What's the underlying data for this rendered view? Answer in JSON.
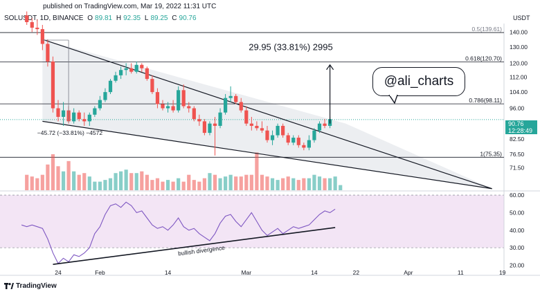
{
  "header": {
    "published": "published on TradingView.com, Mar 19, 2022 11:31 UTC",
    "symbol": "SOLUSDT, 1D, BINANCE",
    "open_label": "O",
    "open": "89.81",
    "high_label": "H",
    "high": "92.35",
    "low_label": "L",
    "low": "89.25",
    "close_label": "C",
    "close": "90.76",
    "currency": "USDT"
  },
  "price_tag": {
    "price": "90.76",
    "time": "12:28:49",
    "color": "#26a69a"
  },
  "bubble": {
    "text": "@ali_charts"
  },
  "footer": {
    "logo": "TradingView",
    "logo_icon": "tradingview-logo-icon"
  },
  "colors": {
    "up": "#26a69a",
    "down": "#ef5350",
    "rsi_band": "#f3e5f5",
    "rsi_line": "#7e57c2",
    "wedge_fill": "#e9ebef"
  },
  "chart_data": [
    {
      "type": "candlestick",
      "title": "",
      "ylabel": "",
      "x_ticks": [
        {
          "label": "24",
          "day": 0
        },
        {
          "label": "Feb",
          "day": 8
        },
        {
          "label": "14",
          "day": 21
        },
        {
          "label": "Mar",
          "day": 36
        },
        {
          "label": "14",
          "day": 49
        },
        {
          "label": "22",
          "day": 57
        },
        {
          "label": "Apr",
          "day": 67
        },
        {
          "label": "11",
          "day": 77
        },
        {
          "label": "19",
          "day": 85
        }
      ],
      "y_ticks": [
        140,
        130,
        120,
        112,
        104,
        96,
        82.5,
        76.5,
        71.5
      ],
      "ylim": [
        64,
        146
      ],
      "scale": "log",
      "fib_levels": [
        {
          "label": "0.5(139.61)",
          "value": 139.61
        },
        {
          "label": "0.618(120.70)",
          "value": 120.7
        },
        {
          "label": "0.786(98.11)",
          "value": 98.11
        },
        {
          "label": "1(75.35)",
          "value": 75.35
        }
      ],
      "measure_up": {
        "label": "29.95 (33.81%) 2995",
        "from": 89,
        "to": 119,
        "day": 52
      },
      "measure_down": {
        "label": "−45.72 (−33.81%) −4572",
        "from": 134.5,
        "to": 89.5,
        "day": 2
      },
      "wedge": {
        "upper": [
          [
            -3,
            135
          ],
          [
            55,
            89
          ]
        ],
        "lower": [
          [
            -3,
            90
          ],
          [
            83,
            64.5
          ]
        ]
      },
      "current_price": 90.76,
      "candles": [
        {
          "day": -6,
          "o": 152,
          "h": 155,
          "l": 145,
          "c": 147
        },
        {
          "day": -5,
          "o": 147,
          "h": 150,
          "l": 140,
          "c": 143
        },
        {
          "day": -4,
          "o": 143,
          "h": 149,
          "l": 138,
          "c": 142
        },
        {
          "day": -3,
          "o": 142,
          "h": 145,
          "l": 128,
          "c": 132
        },
        {
          "day": -2,
          "o": 132,
          "h": 135,
          "l": 118,
          "c": 121
        },
        {
          "day": -1,
          "o": 121,
          "h": 124,
          "l": 94,
          "c": 96
        },
        {
          "day": 0,
          "o": 96,
          "h": 100,
          "l": 90,
          "c": 92
        },
        {
          "day": 1,
          "o": 92,
          "h": 99,
          "l": 88,
          "c": 95
        },
        {
          "day": 2,
          "o": 95,
          "h": 97,
          "l": 89,
          "c": 90
        },
        {
          "day": 3,
          "o": 90,
          "h": 96,
          "l": 89,
          "c": 94
        },
        {
          "day": 4,
          "o": 94,
          "h": 95,
          "l": 90,
          "c": 91
        },
        {
          "day": 5,
          "o": 91,
          "h": 94,
          "l": 88,
          "c": 90
        },
        {
          "day": 6,
          "o": 90,
          "h": 94,
          "l": 88,
          "c": 93
        },
        {
          "day": 7,
          "o": 93,
          "h": 97,
          "l": 92,
          "c": 96
        },
        {
          "day": 8,
          "o": 96,
          "h": 102,
          "l": 95,
          "c": 100
        },
        {
          "day": 9,
          "o": 100,
          "h": 106,
          "l": 99,
          "c": 104
        },
        {
          "day": 10,
          "o": 104,
          "h": 111,
          "l": 103,
          "c": 110
        },
        {
          "day": 11,
          "o": 110,
          "h": 115,
          "l": 109,
          "c": 113
        },
        {
          "day": 12,
          "o": 113,
          "h": 118,
          "l": 111,
          "c": 116
        },
        {
          "day": 13,
          "o": 116,
          "h": 120,
          "l": 113,
          "c": 117
        },
        {
          "day": 14,
          "o": 117,
          "h": 120,
          "l": 114,
          "c": 115
        },
        {
          "day": 15,
          "o": 115,
          "h": 121,
          "l": 114,
          "c": 119
        },
        {
          "day": 16,
          "o": 119,
          "h": 120,
          "l": 115,
          "c": 117
        },
        {
          "day": 17,
          "o": 117,
          "h": 118,
          "l": 110,
          "c": 111
        },
        {
          "day": 18,
          "o": 111,
          "h": 113,
          "l": 103,
          "c": 104
        },
        {
          "day": 19,
          "o": 104,
          "h": 106,
          "l": 96,
          "c": 98
        },
        {
          "day": 20,
          "o": 98,
          "h": 100,
          "l": 95,
          "c": 96
        },
        {
          "day": 21,
          "o": 96,
          "h": 99,
          "l": 94,
          "c": 97
        },
        {
          "day": 22,
          "o": 97,
          "h": 100,
          "l": 94,
          "c": 95
        },
        {
          "day": 23,
          "o": 95,
          "h": 107,
          "l": 94,
          "c": 105
        },
        {
          "day": 24,
          "o": 105,
          "h": 108,
          "l": 96,
          "c": 97
        },
        {
          "day": 25,
          "o": 97,
          "h": 99,
          "l": 94,
          "c": 96
        },
        {
          "day": 26,
          "o": 96,
          "h": 97,
          "l": 90,
          "c": 91
        },
        {
          "day": 27,
          "o": 91,
          "h": 93,
          "l": 88,
          "c": 90
        },
        {
          "day": 28,
          "o": 90,
          "h": 91,
          "l": 84,
          "c": 85
        },
        {
          "day": 29,
          "o": 85,
          "h": 90,
          "l": 84,
          "c": 89
        },
        {
          "day": 30,
          "o": 89,
          "h": 92,
          "l": 76,
          "c": 88
        },
        {
          "day": 31,
          "o": 88,
          "h": 96,
          "l": 87,
          "c": 94
        },
        {
          "day": 32,
          "o": 94,
          "h": 103,
          "l": 93,
          "c": 101
        },
        {
          "day": 33,
          "o": 101,
          "h": 107,
          "l": 99,
          "c": 102
        },
        {
          "day": 34,
          "o": 102,
          "h": 103,
          "l": 98,
          "c": 99
        },
        {
          "day": 35,
          "o": 99,
          "h": 101,
          "l": 94,
          "c": 95
        },
        {
          "day": 36,
          "o": 95,
          "h": 97,
          "l": 88,
          "c": 89
        },
        {
          "day": 37,
          "o": 89,
          "h": 92,
          "l": 86,
          "c": 88
        },
        {
          "day": 38,
          "o": 88,
          "h": 90,
          "l": 86,
          "c": 87
        },
        {
          "day": 39,
          "o": 87,
          "h": 90,
          "l": 85,
          "c": 86
        },
        {
          "day": 40,
          "o": 86,
          "h": 88,
          "l": 81,
          "c": 82
        },
        {
          "day": 41,
          "o": 82,
          "h": 86,
          "l": 80,
          "c": 84
        },
        {
          "day": 42,
          "o": 84,
          "h": 89,
          "l": 83,
          "c": 88
        },
        {
          "day": 43,
          "o": 88,
          "h": 89,
          "l": 83,
          "c": 84
        },
        {
          "day": 44,
          "o": 84,
          "h": 85,
          "l": 80,
          "c": 81
        },
        {
          "day": 45,
          "o": 81,
          "h": 84,
          "l": 80,
          "c": 83
        },
        {
          "day": 46,
          "o": 83,
          "h": 84,
          "l": 79,
          "c": 80
        },
        {
          "day": 47,
          "o": 80,
          "h": 81,
          "l": 78,
          "c": 79
        },
        {
          "day": 48,
          "o": 79,
          "h": 84,
          "l": 78,
          "c": 82
        },
        {
          "day": 49,
          "o": 82,
          "h": 87,
          "l": 81,
          "c": 86
        },
        {
          "day": 50,
          "o": 86,
          "h": 90,
          "l": 85,
          "c": 89
        },
        {
          "day": 51,
          "o": 89,
          "h": 91,
          "l": 87,
          "c": 88
        },
        {
          "day": 52,
          "o": 88,
          "h": 92,
          "l": 87,
          "c": 91
        }
      ]
    },
    {
      "type": "bar",
      "title": "",
      "ylabel": "",
      "note": "volume",
      "ylim": [
        0,
        25
      ],
      "values": [
        9,
        8,
        7,
        9,
        15,
        21,
        14,
        11,
        17,
        11,
        9,
        10,
        8,
        5,
        5,
        6,
        7,
        10,
        11,
        12,
        10,
        10,
        11,
        9,
        6,
        7,
        5,
        6,
        5,
        7,
        5,
        9,
        6,
        5,
        7,
        10,
        9,
        7,
        8,
        9,
        8,
        8,
        9,
        9,
        22,
        9,
        8,
        7,
        6,
        7,
        8,
        7,
        6,
        7,
        7,
        9,
        8,
        7,
        7,
        8,
        3
      ],
      "start_day": -6
    },
    {
      "type": "line",
      "title": "",
      "ylabel": "",
      "note": "RSI",
      "y_ticks": [
        60,
        50,
        40,
        30,
        20
      ],
      "ylim": [
        19,
        62
      ],
      "band": [
        30,
        60
      ],
      "annotation": {
        "label": "bullish divergence",
        "from": [
          -1,
          20.5
        ],
        "to": [
          53,
          41.5
        ]
      },
      "x": [
        -7,
        -6,
        -5,
        -4,
        -3,
        -2,
        -1,
        0,
        1,
        2,
        3,
        4,
        5,
        6,
        7,
        8,
        9,
        10,
        11,
        12,
        13,
        14,
        15,
        16,
        17,
        18,
        19,
        20,
        21,
        22,
        23,
        24,
        25,
        26,
        27,
        28,
        29,
        30,
        31,
        32,
        33,
        34,
        35,
        36,
        37,
        38,
        39,
        40,
        41,
        42,
        43,
        44,
        45,
        46,
        47,
        48,
        49,
        50,
        51,
        52,
        53
      ],
      "values": [
        43,
        42,
        43,
        42,
        41,
        35,
        27,
        21,
        24,
        22,
        26,
        25,
        27,
        30,
        38,
        42,
        49,
        54,
        55,
        53,
        56,
        54,
        50,
        51,
        47,
        43,
        41,
        42,
        40,
        43,
        47,
        42,
        40,
        41,
        38,
        36,
        34,
        38,
        44,
        48,
        49,
        45,
        42,
        46,
        50,
        45,
        40,
        37,
        39,
        41,
        38,
        40,
        42,
        41,
        42,
        43,
        46,
        49,
        51,
        50,
        52
      ]
    }
  ]
}
